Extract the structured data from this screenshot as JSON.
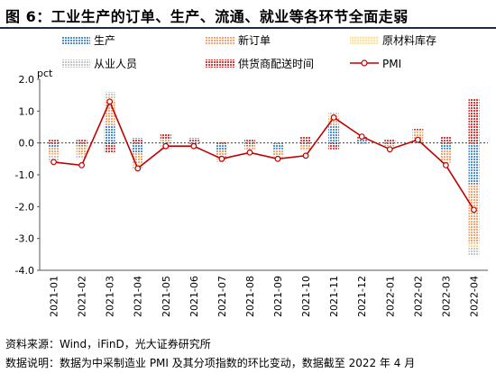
{
  "title": "图 6：工业生产的订单、生产、流通、就业等各环节全面走弱",
  "chart_data": {
    "type": "bar",
    "stacked": true,
    "ylabel": "pct",
    "ylim": [
      -4.0,
      2.0
    ],
    "yticks": [
      "2.0",
      "1.0",
      "0.0",
      "-1.0",
      "-2.0",
      "-3.0",
      "-4.0"
    ],
    "categories": [
      "2021-01",
      "2021-02",
      "2021-03",
      "2021-04",
      "2021-05",
      "2021-06",
      "2021-07",
      "2021-08",
      "2021-09",
      "2021-10",
      "2021-11",
      "2021-12",
      "2022-01",
      "2022-02",
      "2022-03",
      "2022-04"
    ],
    "series": [
      {
        "name": "生产",
        "kind": "bar",
        "color": "#4f8fd6",
        "values": [
          -0.15,
          -0.1,
          0.55,
          -0.3,
          0.05,
          -0.05,
          -0.25,
          -0.1,
          -0.2,
          -0.05,
          0.55,
          0.1,
          -0.05,
          0.05,
          -0.2,
          -1.3
        ]
      },
      {
        "name": "新订单",
        "kind": "bar",
        "color": "#f2a673",
        "values": [
          -0.2,
          -0.25,
          0.75,
          -0.35,
          0.05,
          0.0,
          -0.25,
          -0.1,
          -0.2,
          -0.15,
          0.25,
          0.05,
          -0.05,
          0.3,
          -0.35,
          -1.85
        ]
      },
      {
        "name": "原材料库存",
        "kind": "bar",
        "color": "#fde3a3",
        "values": [
          -0.05,
          -0.05,
          0.1,
          -0.05,
          -0.05,
          0.0,
          -0.05,
          0.0,
          -0.05,
          0.0,
          0.1,
          0.0,
          -0.05,
          0.05,
          -0.05,
          -0.1
        ]
      },
      {
        "name": "从业人员",
        "kind": "bar",
        "color": "#cfcfcf",
        "values": [
          -0.2,
          -0.1,
          0.2,
          -0.1,
          -0.15,
          0.05,
          -0.05,
          0.0,
          -0.05,
          -0.05,
          0.05,
          -0.05,
          0.0,
          0.0,
          -0.05,
          -0.3
        ]
      },
      {
        "name": "供货商配送时间",
        "kind": "bar",
        "color": "#d93a3a",
        "values": [
          0.1,
          0.1,
          -0.3,
          0.15,
          0.2,
          0.1,
          0.05,
          0.1,
          0.0,
          0.2,
          -0.2,
          0.05,
          0.1,
          0.05,
          0.2,
          1.4
        ]
      },
      {
        "name": "PMI",
        "kind": "line",
        "color": "#c00000",
        "values": [
          -0.6,
          -0.7,
          1.3,
          -0.8,
          -0.1,
          -0.1,
          -0.5,
          -0.3,
          -0.5,
          -0.4,
          0.8,
          0.2,
          -0.2,
          0.1,
          -0.7,
          -2.1
        ]
      }
    ],
    "legend_position": "top"
  },
  "footer": {
    "source": "资料来源：Wind，iFinD，光大证券研究所",
    "note": "数据说明：数据为中采制造业 PMI 及其分项指数的环比变动，数据截至 2022 年 4 月"
  }
}
